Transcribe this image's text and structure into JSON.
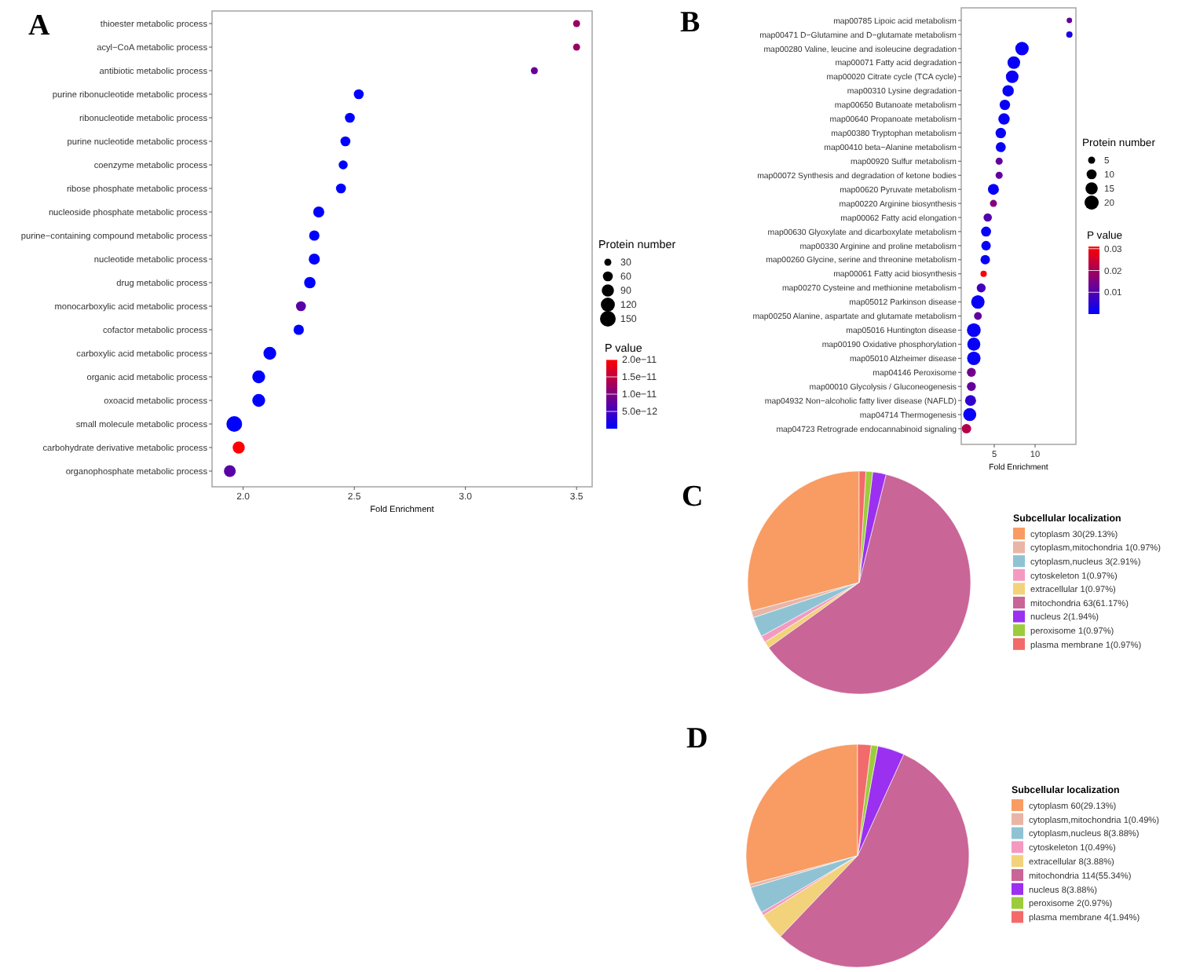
{
  "chart_data": [
    {
      "type": "bubble",
      "title": "A",
      "orientation": "horizontal",
      "xlabel": "Fold Enrichment",
      "legend_title": "Protein number",
      "clabel": "P value",
      "grid": false,
      "categories": [
        "thioester metabolic process",
        "acyl−CoA metabolic process",
        "antibiotic metabolic process",
        "purine ribonucleotide metabolic process",
        "ribonucleotide metabolic process",
        "purine nucleotide metabolic process",
        "coenzyme metabolic process",
        "ribose phosphate metabolic process",
        "nucleoside phosphate metabolic process",
        "purine−containing compound metabolic process",
        "nucleotide metabolic process",
        "drug metabolic process",
        "monocarboxylic acid metabolic process",
        "cofactor metabolic process",
        "carboxylic acid metabolic process",
        "organic acid metabolic process",
        "oxoacid metabolic process",
        "small molecule metabolic process",
        "carbohydrate derivative metabolic process",
        "organophosphate metabolic process"
      ],
      "values": [
        3.5,
        3.5,
        3.31,
        2.52,
        2.48,
        2.46,
        2.45,
        2.44,
        2.34,
        2.32,
        2.32,
        2.3,
        2.26,
        2.25,
        2.12,
        2.07,
        2.07,
        1.96,
        1.98,
        1.94
      ],
      "sizes": [
        30,
        30,
        30,
        60,
        60,
        60,
        50,
        60,
        75,
        65,
        75,
        80,
        60,
        65,
        100,
        100,
        100,
        150,
        90,
        85
      ],
      "cvalues": [
        1.2e-11,
        1.2e-11,
        8e-12,
        0,
        0,
        0,
        0,
        0,
        0,
        0,
        0,
        0,
        7e-12,
        0,
        0,
        0,
        0,
        0,
        2e-11,
        7e-12
      ],
      "size_legend": [
        30,
        60,
        90,
        120,
        150
      ],
      "xlim": [
        1.86,
        3.57
      ],
      "xticks": [
        {
          "value": 2,
          "label": "2.0"
        },
        2.5,
        {
          "value": 3,
          "label": "3.0"
        },
        3.5
      ],
      "clim": [
        0,
        2e-11
      ],
      "cticks": [
        {
          "value": 5e-12,
          "label": "5.0e−12"
        },
        {
          "value": 1e-11,
          "label": "1.0e−11"
        },
        {
          "value": 1.5e-11,
          "label": "1.5e−11"
        },
        {
          "value": 2e-11,
          "label": "2.0e−11"
        }
      ]
    },
    {
      "type": "bubble",
      "title": "B",
      "orientation": "horizontal",
      "xlabel": "Fold Enrichment",
      "legend_title": "Protein number",
      "clabel": "P value",
      "grid": false,
      "categories": [
        "map00785 Lipoic acid metabolism",
        "map00471 D−Glutamine and D−glutamate metabolism",
        "map00280 Valine, leucine and isoleucine degradation",
        "map00071 Fatty acid degradation",
        "map00020 Citrate cycle (TCA cycle)",
        "map00310 Lysine degradation",
        "map00650 Butanoate metabolism",
        "map00640 Propanoate metabolism",
        "map00380 Tryptophan metabolism",
        "map00410 beta−Alanine metabolism",
        "map00920 Sulfur metabolism",
        "map00072 Synthesis and degradation of ketone bodies",
        "map00620 Pyruvate metabolism",
        "map00220 Arginine biosynthesis",
        "map00062 Fatty acid elongation",
        "map00630 Glyoxylate and dicarboxylate metabolism",
        "map00330 Arginine and proline metabolism",
        "map00260 Glycine, serine and threonine metabolism",
        "map00061 Fatty acid biosynthesis",
        "map00270 Cysteine and methionine metabolism",
        "map05012 Parkinson disease",
        "map00250 Alanine, aspartate and glutamate metabolism",
        "map05016 Huntington disease",
        "map00190 Oxidative phosphorylation",
        "map05010 Alzheimer disease",
        "map04146 Peroxisome",
        "map00010 Glycolysis / Gluconeogenesis",
        "map04932 Non−alcoholic fatty liver disease (NAFLD)",
        "map04714 Thermogenesis",
        "map04723 Retrograde endocannabinoid signaling"
      ],
      "values": [
        14.2,
        14.2,
        8.4,
        7.4,
        7.2,
        6.7,
        6.3,
        6.2,
        5.8,
        5.8,
        5.6,
        5.6,
        4.9,
        4.9,
        4.2,
        4.0,
        4.0,
        3.9,
        3.7,
        3.4,
        3.0,
        3.0,
        2.5,
        2.5,
        2.5,
        2.2,
        2.2,
        2.1,
        2.0,
        1.6
      ],
      "sizes": [
        3,
        4,
        18,
        16,
        16,
        13,
        11,
        13,
        11,
        10,
        5,
        5,
        12,
        5,
        7,
        10,
        9,
        9,
        4,
        8,
        18,
        6,
        19,
        17,
        18,
        8,
        8,
        12,
        17,
        9
      ],
      "cvalues": [
        0.012,
        0.003,
        0.001,
        0.001,
        0.001,
        0.001,
        0.001,
        0.001,
        0.001,
        0.001,
        0.012,
        0.012,
        0.001,
        0.016,
        0.01,
        0.001,
        0.001,
        0.001,
        0.03,
        0.008,
        0.001,
        0.012,
        0.001,
        0.001,
        0.001,
        0.014,
        0.012,
        0.006,
        0.001,
        0.022
      ],
      "size_legend": [
        5,
        10,
        15,
        20
      ],
      "xlim": [
        0.96,
        15
      ],
      "xticks": [
        5,
        10
      ],
      "clim": [
        0,
        0.031
      ],
      "cticks": [
        0.01,
        0.02,
        0.03
      ]
    },
    {
      "type": "pie",
      "title": "C",
      "legend": "right",
      "legend_title": "Subcellular localization",
      "categories": [
        "cytoplasm 30(29.13%)",
        "cytoplasm,mitochondria 1(0.97%)",
        "cytoplasm,nucleus 3(2.91%)",
        "cytoskeleton 1(0.97%)",
        "extracellular 1(0.97%)",
        "mitochondria 63(61.17%)",
        "nucleus 2(1.94%)",
        "peroxisome 1(0.97%)",
        "plasma membrane 1(0.97%)"
      ],
      "values": [
        30,
        1,
        3,
        1,
        1,
        63,
        2,
        1,
        1
      ],
      "colors": [
        "#f89c64",
        "#e9b5a6",
        "#8fc3d4",
        "#f49ac1",
        "#f2d27a",
        "#c96597",
        "#9b30f0",
        "#9ccc3c",
        "#f26a6a"
      ]
    },
    {
      "type": "pie",
      "title": "D",
      "legend": "right",
      "legend_title": "Subcellular localization",
      "categories": [
        "cytoplasm 60(29.13%)",
        "cytoplasm,mitochondria 1(0.49%)",
        "cytoplasm,nucleus 8(3.88%)",
        "cytoskeleton 1(0.49%)",
        "extracellular 8(3.88%)",
        "mitochondria 114(55.34%)",
        "nucleus 8(3.88%)",
        "peroxisome 2(0.97%)",
        "plasma membrane 4(1.94%)"
      ],
      "values": [
        60,
        1,
        8,
        1,
        8,
        114,
        8,
        2,
        4
      ],
      "colors": [
        "#f89c64",
        "#e9b5a6",
        "#8fc3d4",
        "#f49ac1",
        "#f2d27a",
        "#c96597",
        "#9b30f0",
        "#9ccc3c",
        "#f26a6a"
      ]
    }
  ]
}
